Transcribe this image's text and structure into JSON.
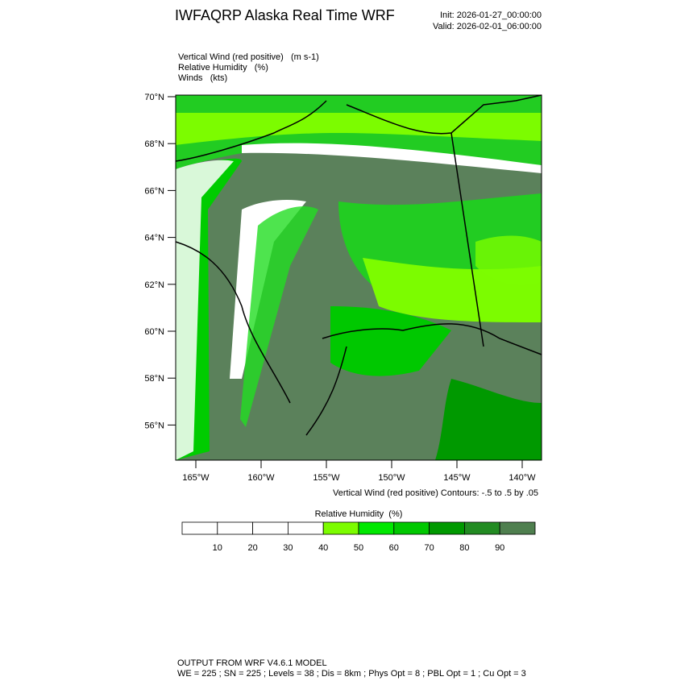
{
  "header": {
    "title": "IWFAQRP Alaska Real Time WRF",
    "init": "Init: 2026-01-27_00:00:00",
    "valid": "Valid: 2026-02-01_06:00:00"
  },
  "fields": [
    "Vertical Wind (red positive)   (m s-1)",
    "Relative Humidity   (%)",
    "Winds   (kts)"
  ],
  "map": {
    "lat_labels": [
      "70°N",
      "68°N",
      "66°N",
      "64°N",
      "62°N",
      "60°N",
      "58°N",
      "56°N"
    ],
    "lon_labels": [
      "165°W",
      "160°W",
      "155°W",
      "150°W",
      "145°W",
      "140°W"
    ],
    "contour_note": "Vertical Wind (red positive) Contours: -.5 to .5 by .05"
  },
  "colorbar": {
    "title": "Relative Humidity  (%)",
    "ticks": [
      10,
      20,
      30,
      40,
      50,
      60,
      70,
      80,
      90
    ],
    "colors": [
      "#ffffff",
      "#ffffff",
      "#ffffff",
      "#ffffff",
      "#7cfc00",
      "#00e800",
      "#00c800",
      "#009900",
      "#228b22",
      "#4f7f4f"
    ]
  },
  "footer": [
    "OUTPUT FROM WRF V4.6.1 MODEL",
    "WE = 225 ; SN = 225 ; Levels = 38 ; Dis = 8km ; Phys Opt = 8 ; PBL Opt = 1 ; Cu Opt = 3"
  ]
}
